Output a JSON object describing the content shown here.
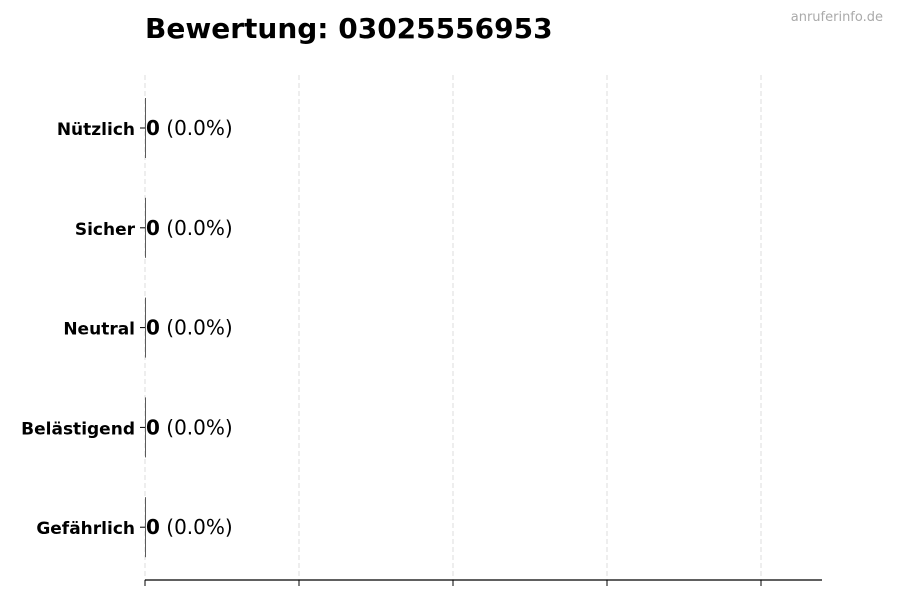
{
  "watermark": "anruferinfo.de",
  "chart_data": {
    "type": "bar",
    "orientation": "horizontal",
    "title": "Bewertung: 03025556953",
    "categories": [
      "Nützlich",
      "Sicher",
      "Neutral",
      "Belästigend",
      "Gefährlich"
    ],
    "values": [
      0,
      0,
      0,
      0,
      0
    ],
    "data_labels": [
      {
        "count": "0",
        "percent": "(0.0%)"
      },
      {
        "count": "0",
        "percent": "(0.0%)"
      },
      {
        "count": "0",
        "percent": "(0.0%)"
      },
      {
        "count": "0",
        "percent": "(0.0%)"
      },
      {
        "count": "0",
        "percent": "(0.0%)"
      }
    ],
    "xlabel": "",
    "ylabel": "",
    "x_tick_labels_shown": false,
    "grid": "x dashed",
    "colors": {
      "bar_edge": "#333333",
      "grid": "#dddddd",
      "axis": "#000000"
    }
  }
}
